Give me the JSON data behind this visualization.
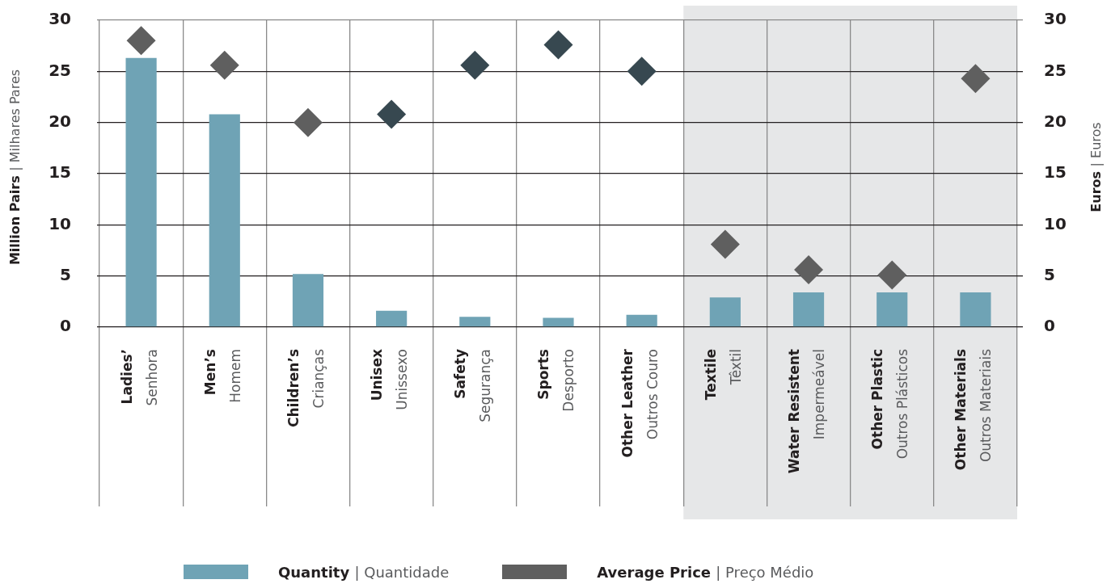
{
  "chart_data": {
    "type": "bar",
    "categories": [
      "Ladies’\nSenhora",
      "Men’s\nHomem",
      "Children’s\nCrianças",
      "Unisex\nUnissexo",
      "Safety\nSegurança",
      "Sports\nDesporto",
      "Other Leather\nOutros Couro",
      "Textile\nTêxtil",
      "Water Resistent\nImpermeável",
      "Other Plastic\nOutros Plásticos",
      "Other Materials\nOutros Materiais"
    ],
    "series": [
      {
        "name": "Quantity | Quantidade",
        "color": "#6fa3b5",
        "values": [
          26.3,
          20.8,
          5.2,
          1.6,
          1.0,
          0.9,
          1.2,
          2.9,
          3.4,
          3.4,
          3.4
        ]
      },
      {
        "name": "Average Price | Preço Médio",
        "type": "scatter",
        "axis": "y2",
        "marker": "diamond",
        "color": "#5f5f5f",
        "colors": [
          "#5f5f5f",
          "#5f5f5f",
          "#5f5f5f",
          "#374850",
          "#374850",
          "#374850",
          "#374850",
          "#5f5f5f",
          "#5f5f5f",
          "#5f5f5f",
          "#5f5f5f"
        ],
        "x": [
          "Ladies’\nSenhora",
          "Men’s\nHomem",
          "Children’s\nCrianças",
          "Unisex\nUnissexo",
          "Safety\nSegurança",
          "Sports\nDesporto",
          "Other Leather\nOutros Couro",
          "Textile\nTêxtil",
          "Water Resistent\nImpermeável",
          "Other Plastic\nOutros Plásticos",
          "Other Materials\nOutros Materiais"
        ],
        "values": [
          28.0,
          25.6,
          20.0,
          20.8,
          25.6,
          27.6,
          25.0,
          8.1,
          5.6,
          5.1,
          24.3
        ]
      }
    ],
    "ylabel": "Million Pairs | Milhares Pares",
    "y2label": "Euros | Euros",
    "ylim": [
      0,
      30
    ],
    "yticks": [
      0,
      5,
      10,
      15,
      20,
      25,
      30
    ],
    "y2lim": [
      0,
      30
    ],
    "y2ticks": [
      0,
      5,
      10,
      15,
      20,
      25,
      30
    ],
    "bands": [
      {
        "axis": "x",
        "from": "Textile\nTêxtil",
        "to": "Other Materials\nOutros Materiais",
        "color": "#e6e7e8"
      }
    ],
    "grid": true,
    "legend": "bottom"
  }
}
